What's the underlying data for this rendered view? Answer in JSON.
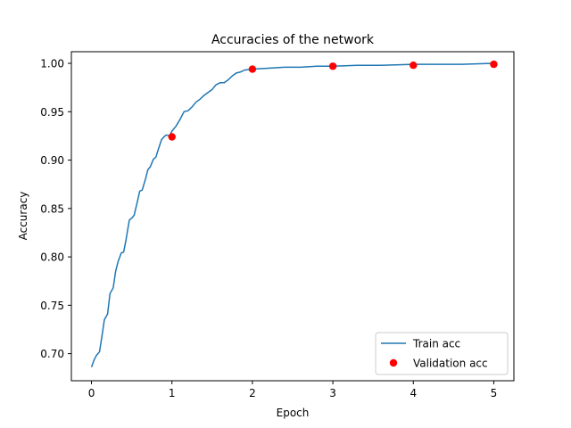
{
  "chart_data": {
    "type": "line",
    "title": "Accuracies of the network",
    "xlabel": "Epoch",
    "ylabel": "Accuracy",
    "xlim": [
      -0.25,
      5.25
    ],
    "ylim": [
      0.672,
      1.012
    ],
    "xticks": [
      "0",
      "1",
      "2",
      "3",
      "4",
      "5"
    ],
    "yticks": [
      "0.70",
      "0.75",
      "0.80",
      "0.85",
      "0.90",
      "0.95",
      "1.00"
    ],
    "grid": false,
    "legend_position": "lower-right",
    "series": [
      {
        "name": "Train acc",
        "type": "line",
        "color": "#1f77b4",
        "x": [
          0,
          0.03,
          0.06,
          0.1,
          0.13,
          0.16,
          0.2,
          0.23,
          0.27,
          0.3,
          0.33,
          0.37,
          0.4,
          0.43,
          0.47,
          0.5,
          0.53,
          0.57,
          0.6,
          0.63,
          0.67,
          0.7,
          0.73,
          0.77,
          0.8,
          0.83,
          0.87,
          0.9,
          0.93,
          0.97,
          1.0,
          1.05,
          1.1,
          1.15,
          1.2,
          1.25,
          1.3,
          1.35,
          1.4,
          1.45,
          1.5,
          1.55,
          1.6,
          1.65,
          1.7,
          1.75,
          1.8,
          1.85,
          1.9,
          2.0,
          2.2,
          2.4,
          2.6,
          2.8,
          3.0,
          3.3,
          3.6,
          4.0,
          4.3,
          4.6,
          5.0
        ],
        "y": [
          0.686,
          0.693,
          0.698,
          0.702,
          0.718,
          0.735,
          0.741,
          0.762,
          0.768,
          0.785,
          0.795,
          0.804,
          0.805,
          0.818,
          0.838,
          0.84,
          0.843,
          0.857,
          0.868,
          0.869,
          0.88,
          0.89,
          0.893,
          0.901,
          0.903,
          0.911,
          0.921,
          0.924,
          0.926,
          0.925,
          0.93,
          0.935,
          0.942,
          0.95,
          0.951,
          0.955,
          0.96,
          0.963,
          0.967,
          0.97,
          0.973,
          0.978,
          0.98,
          0.98,
          0.983,
          0.987,
          0.99,
          0.991,
          0.993,
          0.994,
          0.995,
          0.996,
          0.996,
          0.997,
          0.997,
          0.998,
          0.998,
          0.999,
          0.999,
          0.999,
          1.0
        ]
      },
      {
        "name": "Validation acc",
        "type": "scatter",
        "color": "#ff0000",
        "x": [
          1,
          2,
          3,
          4,
          5
        ],
        "y": [
          0.924,
          0.994,
          0.997,
          0.998,
          0.999
        ]
      }
    ]
  }
}
